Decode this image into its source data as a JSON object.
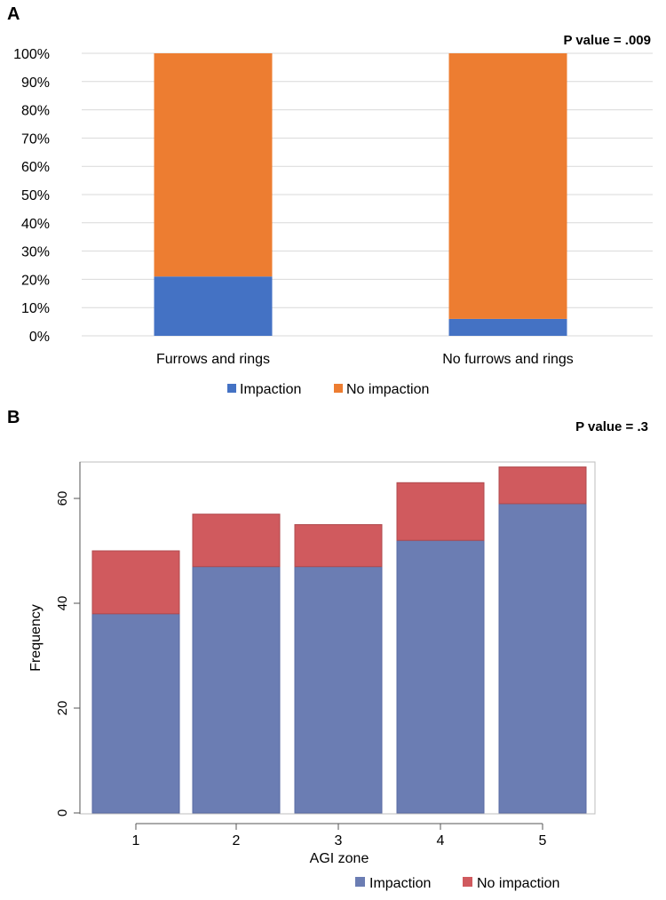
{
  "colors": {
    "impaction_a": "#4472C4",
    "no_impaction_a": "#ED7D31",
    "impaction_b": "#6B7DB3",
    "no_impaction_b": "#D05A5E",
    "grid": "#d9d9d9",
    "text": "#222222"
  },
  "chart_data": [
    {
      "panel_label": "A",
      "type": "bar",
      "stacked": true,
      "title": "",
      "annotation": "P value = .009",
      "categories": [
        "Furrows and rings",
        "No furrows and rings"
      ],
      "series": [
        {
          "name": "Impaction",
          "values": [
            21,
            6
          ]
        },
        {
          "name": "No impaction",
          "values": [
            79,
            94
          ]
        }
      ],
      "ylim": [
        0,
        100
      ],
      "yticks": [
        "0%",
        "10%",
        "20%",
        "30%",
        "40%",
        "50%",
        "60%",
        "70%",
        "80%",
        "90%",
        "100%"
      ],
      "xlabel": "",
      "ylabel": "",
      "grid": true,
      "legend": "bottom"
    },
    {
      "panel_label": "B",
      "type": "bar",
      "stacked": true,
      "title": "",
      "annotation": "P value = .3",
      "categories": [
        "1",
        "2",
        "3",
        "4",
        "5"
      ],
      "series": [
        {
          "name": "Impaction",
          "values": [
            38,
            47,
            47,
            52,
            59
          ]
        },
        {
          "name": "No impaction",
          "values": [
            12,
            10,
            8,
            11,
            7
          ]
        }
      ],
      "ylim": [
        0,
        67
      ],
      "yticks": [
        "0",
        "20",
        "40",
        "60"
      ],
      "xlabel": "AGI zone",
      "ylabel": "Frequency",
      "grid": false,
      "legend": "bottom-right"
    }
  ]
}
